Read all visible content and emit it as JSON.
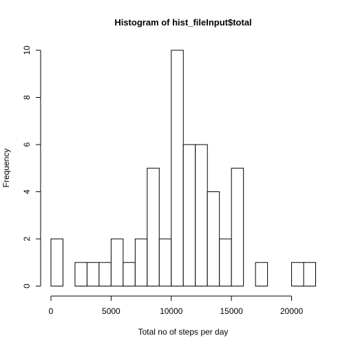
{
  "chart_data": {
    "type": "bar",
    "title": "Histogram of hist_fileInput$total",
    "xlabel": "Total no of steps per day",
    "ylabel": "Frequency",
    "bin_width": 1000,
    "bins": [
      {
        "start": 0,
        "end": 1000,
        "count": 2
      },
      {
        "start": 1000,
        "end": 2000,
        "count": 0
      },
      {
        "start": 2000,
        "end": 3000,
        "count": 1
      },
      {
        "start": 3000,
        "end": 4000,
        "count": 1
      },
      {
        "start": 4000,
        "end": 5000,
        "count": 1
      },
      {
        "start": 5000,
        "end": 6000,
        "count": 2
      },
      {
        "start": 6000,
        "end": 7000,
        "count": 1
      },
      {
        "start": 7000,
        "end": 8000,
        "count": 2
      },
      {
        "start": 8000,
        "end": 9000,
        "count": 5
      },
      {
        "start": 9000,
        "end": 10000,
        "count": 2
      },
      {
        "start": 10000,
        "end": 11000,
        "count": 10
      },
      {
        "start": 11000,
        "end": 12000,
        "count": 6
      },
      {
        "start": 12000,
        "end": 13000,
        "count": 6
      },
      {
        "start": 13000,
        "end": 14000,
        "count": 4
      },
      {
        "start": 14000,
        "end": 15000,
        "count": 2
      },
      {
        "start": 15000,
        "end": 16000,
        "count": 5
      },
      {
        "start": 16000,
        "end": 17000,
        "count": 0
      },
      {
        "start": 17000,
        "end": 18000,
        "count": 1
      },
      {
        "start": 18000,
        "end": 19000,
        "count": 0
      },
      {
        "start": 19000,
        "end": 20000,
        "count": 0
      },
      {
        "start": 20000,
        "end": 21000,
        "count": 1
      },
      {
        "start": 21000,
        "end": 22000,
        "count": 1
      }
    ],
    "xlim": [
      0,
      22000
    ],
    "ylim": [
      0,
      10
    ],
    "xticks": [
      0,
      5000,
      10000,
      15000,
      20000
    ],
    "yticks": [
      0,
      2,
      4,
      6,
      8,
      10
    ],
    "grid": false,
    "legend": "none"
  },
  "colors": {
    "bar_fill": "#ffffff",
    "bar_stroke": "#000000",
    "background": "#ffffff"
  }
}
